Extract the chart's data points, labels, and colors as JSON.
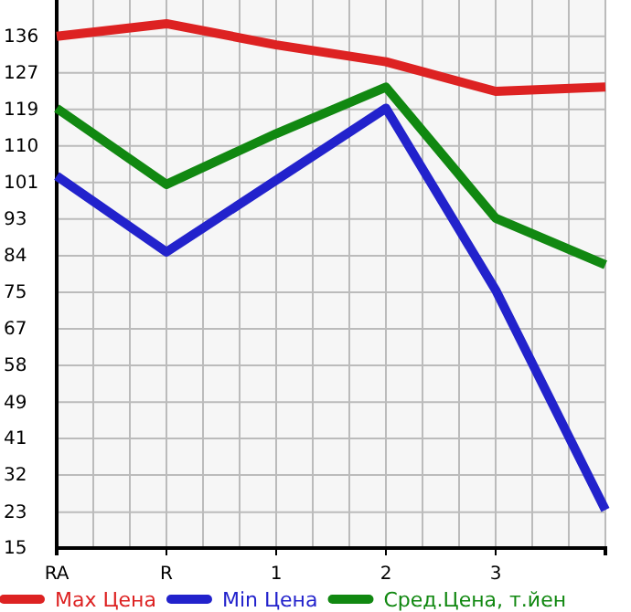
{
  "chart_data": {
    "type": "line",
    "categories": [
      "RA",
      "R",
      "1",
      "2",
      "3",
      null
    ],
    "series": [
      {
        "name": "Max Цена",
        "color": "#dd2222",
        "values": [
          136,
          139,
          134,
          130,
          123,
          124
        ]
      },
      {
        "name": "Min Цена",
        "color": "#2222cc",
        "values": [
          103,
          85,
          102,
          119,
          76,
          24
        ]
      },
      {
        "name": "Сред.Цена, т.йен",
        "color": "#118811",
        "values": [
          119,
          101,
          113,
          124,
          93,
          82
        ]
      }
    ],
    "ylim": [
      15,
      144.6
    ],
    "yticks": [
      {
        "value": 15,
        "label": "15"
      },
      {
        "value": 23.49,
        "label": "23"
      },
      {
        "value": 32.29,
        "label": "32"
      },
      {
        "value": 40.93,
        "label": "41"
      },
      {
        "value": 49.49,
        "label": "49"
      },
      {
        "value": 58.21,
        "label": "58"
      },
      {
        "value": 66.86,
        "label": "67"
      },
      {
        "value": 75.5,
        "label": "75"
      },
      {
        "value": 84.14,
        "label": "84"
      },
      {
        "value": 92.79,
        "label": "93"
      },
      {
        "value": 101.43,
        "label": "101"
      },
      {
        "value": 110.07,
        "label": "110"
      },
      {
        "value": 118.71,
        "label": "119"
      },
      {
        "value": 127.36,
        "label": "127"
      },
      {
        "value": 136,
        "label": "136"
      }
    ],
    "grid": true,
    "legend": "bottom",
    "marker": "none",
    "line_style": "solid"
  }
}
